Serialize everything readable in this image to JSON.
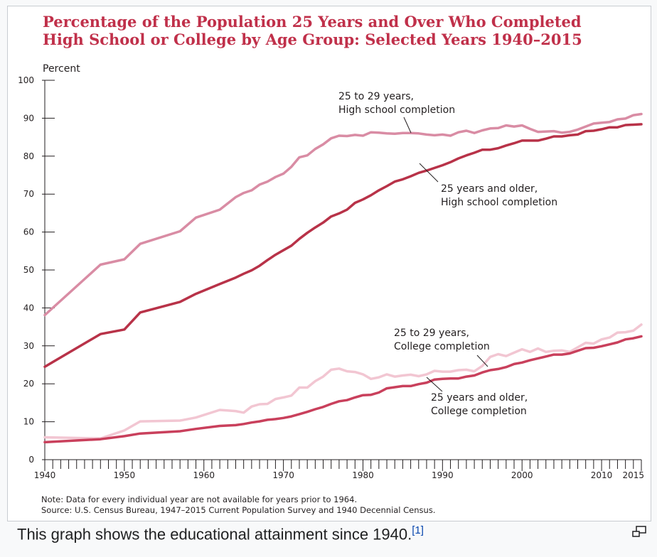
{
  "chart_data": {
    "type": "line",
    "title_lines": [
      "Percentage of the Population 25 Years and Over Who Completed",
      "High School or College by Age Group: Selected Years 1940–2015"
    ],
    "ylabel": "Percent",
    "ylim": [
      0,
      100
    ],
    "y_ticks": [
      0,
      10,
      20,
      30,
      40,
      50,
      60,
      70,
      80,
      90,
      100
    ],
    "xlim": [
      1940,
      2015
    ],
    "x_tick_labels": [
      1940,
      1950,
      1960,
      1970,
      1980,
      1990,
      2000,
      2010,
      2015
    ],
    "grid": false,
    "series": [
      {
        "name": "25 to 29 years, High school completion",
        "color": "#d98ca4",
        "x": [
          1940,
          1947,
          1950,
          1952,
          1957,
          1959,
          1962,
          1964,
          1965,
          1966,
          1967,
          1968,
          1969,
          1970,
          1971,
          1972,
          1973,
          1974,
          1975,
          1976,
          1977,
          1978,
          1979,
          1980,
          1981,
          1982,
          1983,
          1984,
          1985,
          1986,
          1987,
          1988,
          1989,
          1990,
          1991,
          1992,
          1993,
          1994,
          1995,
          1996,
          1997,
          1998,
          1999,
          2000,
          2001,
          2002,
          2003,
          2004,
          2005,
          2006,
          2007,
          2008,
          2009,
          2010,
          2011,
          2012,
          2013,
          2014,
          2015
        ],
        "values": [
          38.1,
          51.4,
          52.8,
          56.9,
          60.2,
          63.8,
          65.9,
          69.2,
          70.3,
          71.0,
          72.5,
          73.3,
          74.5,
          75.4,
          77.2,
          79.7,
          80.2,
          81.9,
          83.1,
          84.7,
          85.4,
          85.3,
          85.6,
          85.4,
          86.3,
          86.2,
          86.0,
          85.9,
          86.1,
          86.1,
          86.0,
          85.7,
          85.5,
          85.7,
          85.4,
          86.3,
          86.7,
          86.1,
          86.8,
          87.3,
          87.4,
          88.1,
          87.8,
          88.1,
          87.2,
          86.4,
          86.5,
          86.6,
          86.2,
          86.4,
          87.0,
          87.8,
          88.6,
          88.8,
          89.0,
          89.7,
          89.9,
          90.8,
          91.1
        ]
      },
      {
        "name": "25 years and older, High school completion",
        "color": "#b83248",
        "x": [
          1940,
          1947,
          1950,
          1952,
          1957,
          1959,
          1962,
          1964,
          1965,
          1966,
          1967,
          1968,
          1969,
          1970,
          1971,
          1972,
          1973,
          1974,
          1975,
          1976,
          1977,
          1978,
          1979,
          1980,
          1981,
          1982,
          1983,
          1984,
          1985,
          1986,
          1987,
          1988,
          1989,
          1990,
          1991,
          1992,
          1993,
          1994,
          1995,
          1996,
          1997,
          1998,
          1999,
          2000,
          2001,
          2002,
          2003,
          2004,
          2005,
          2006,
          2007,
          2008,
          2009,
          2010,
          2011,
          2012,
          2013,
          2014,
          2015
        ],
        "values": [
          24.5,
          33.1,
          34.3,
          38.8,
          41.6,
          43.7,
          46.3,
          48.0,
          49.0,
          49.9,
          51.1,
          52.6,
          54.0,
          55.2,
          56.4,
          58.2,
          59.8,
          61.2,
          62.5,
          64.1,
          64.9,
          65.9,
          67.7,
          68.6,
          69.7,
          71.0,
          72.1,
          73.3,
          73.9,
          74.7,
          75.6,
          76.2,
          76.9,
          77.6,
          78.4,
          79.4,
          80.2,
          80.9,
          81.7,
          81.7,
          82.1,
          82.8,
          83.4,
          84.1,
          84.1,
          84.1,
          84.6,
          85.2,
          85.2,
          85.5,
          85.7,
          86.6,
          86.7,
          87.1,
          87.6,
          87.6,
          88.2,
          88.3,
          88.4
        ]
      },
      {
        "name": "25 to 29 years, College completion",
        "color": "#f2c6d2",
        "x": [
          1940,
          1947,
          1950,
          1952,
          1957,
          1959,
          1962,
          1964,
          1965,
          1966,
          1967,
          1968,
          1969,
          1970,
          1971,
          1972,
          1973,
          1974,
          1975,
          1976,
          1977,
          1978,
          1979,
          1980,
          1981,
          1982,
          1983,
          1984,
          1985,
          1986,
          1987,
          1988,
          1989,
          1990,
          1991,
          1992,
          1993,
          1994,
          1995,
          1996,
          1997,
          1998,
          1999,
          2000,
          2001,
          2002,
          2003,
          2004,
          2005,
          2006,
          2007,
          2008,
          2009,
          2010,
          2011,
          2012,
          2013,
          2014,
          2015
        ],
        "values": [
          5.9,
          5.6,
          7.7,
          10.1,
          10.3,
          11.1,
          13.1,
          12.8,
          12.4,
          14.0,
          14.6,
          14.7,
          16.0,
          16.4,
          16.9,
          19.0,
          19.0,
          20.7,
          21.9,
          23.7,
          24.0,
          23.3,
          23.1,
          22.5,
          21.3,
          21.7,
          22.5,
          21.9,
          22.2,
          22.4,
          22.0,
          22.5,
          23.4,
          23.2,
          23.2,
          23.6,
          23.7,
          23.3,
          24.7,
          27.1,
          27.8,
          27.3,
          28.2,
          29.1,
          28.4,
          29.3,
          28.4,
          28.7,
          28.8,
          28.4,
          29.6,
          30.8,
          30.6,
          31.7,
          32.2,
          33.5,
          33.6,
          34.0,
          35.6
        ]
      },
      {
        "name": "25 years and older, College completion",
        "color": "#c9405c",
        "x": [
          1940,
          1947,
          1950,
          1952,
          1957,
          1959,
          1962,
          1964,
          1965,
          1966,
          1967,
          1968,
          1969,
          1970,
          1971,
          1972,
          1973,
          1974,
          1975,
          1976,
          1977,
          1978,
          1979,
          1980,
          1981,
          1982,
          1983,
          1984,
          1985,
          1986,
          1987,
          1988,
          1989,
          1990,
          1991,
          1992,
          1993,
          1994,
          1995,
          1996,
          1997,
          1998,
          1999,
          2000,
          2001,
          2002,
          2003,
          2004,
          2005,
          2006,
          2007,
          2008,
          2009,
          2010,
          2011,
          2012,
          2013,
          2014,
          2015
        ],
        "values": [
          4.6,
          5.4,
          6.2,
          6.9,
          7.5,
          8.1,
          8.9,
          9.1,
          9.4,
          9.8,
          10.1,
          10.5,
          10.7,
          11.0,
          11.4,
          12.0,
          12.6,
          13.3,
          13.9,
          14.7,
          15.4,
          15.7,
          16.4,
          17.0,
          17.1,
          17.7,
          18.8,
          19.1,
          19.4,
          19.4,
          19.9,
          20.3,
          21.1,
          21.3,
          21.4,
          21.4,
          21.9,
          22.2,
          23.0,
          23.6,
          23.9,
          24.4,
          25.2,
          25.6,
          26.2,
          26.7,
          27.2,
          27.7,
          27.7,
          28.0,
          28.7,
          29.4,
          29.5,
          29.9,
          30.4,
          30.9,
          31.7,
          32.0,
          32.5
        ]
      }
    ],
    "annotations": [
      {
        "lines": [
          "25 to 29 years,",
          "High school completion"
        ]
      },
      {
        "lines": [
          "25 years and older,",
          "High school completion"
        ]
      },
      {
        "lines": [
          "25 to 29 years,",
          "College completion"
        ]
      },
      {
        "lines": [
          "25 years and older,",
          "College completion"
        ]
      }
    ],
    "notes": [
      "Note: Data for every individual year are not available for years prior to 1964.",
      "Source: U.S. Census Bureau, 1947–2015 Current Population Survey and 1940 Decennial Census."
    ]
  },
  "caption": {
    "text": "This graph shows the educational attainment since 1940.",
    "ref": "[1]"
  },
  "icons": {
    "enlarge": "enlarge-icon"
  }
}
